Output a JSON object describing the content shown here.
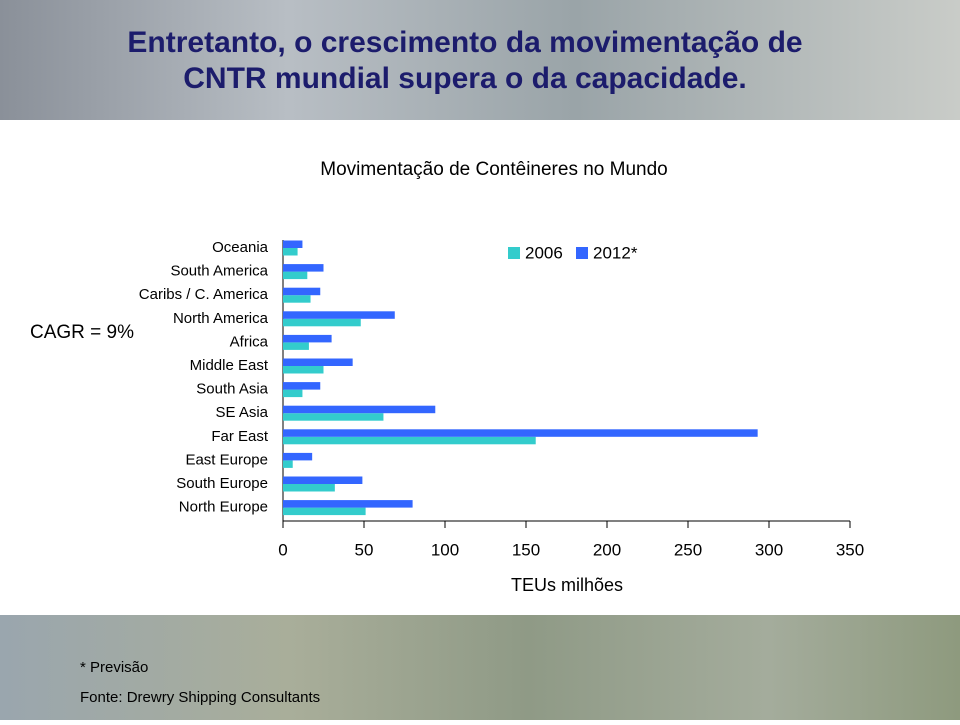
{
  "slide_title": [
    "Entretanto, o crescimento da movimentação de",
    "CNTR mundial supera o da capacidade."
  ],
  "footnotes": [
    "* Previsão",
    "Fonte: Drewry Shipping Consultants"
  ],
  "chart_data": {
    "type": "hbar",
    "title": "Movimentação de Contêineres no Mundo",
    "annotation": "CAGR = 9%",
    "x_label": "TEUs milhões",
    "categories": [
      "Oceania",
      "South America",
      "Caribs / C. America",
      "North America",
      "Africa",
      "Middle East",
      "South Asia",
      "SE Asia",
      "Far East",
      "East Europe",
      "South Europe",
      "North Europe"
    ],
    "series": [
      {
        "name": "2006",
        "color": "#33cccc",
        "values": [
          9,
          15,
          17,
          48,
          16,
          25,
          12,
          62,
          156,
          6,
          32,
          51
        ]
      },
      {
        "name": "2012*",
        "color": "#3366ff",
        "values": [
          12,
          25,
          23,
          69,
          30,
          43,
          23,
          94,
          293,
          18,
          49,
          80
        ]
      }
    ],
    "xlim": [
      0,
      350
    ],
    "xticks": [
      0,
      50,
      100,
      150,
      200,
      250,
      300,
      350
    ],
    "legend": "top-right"
  }
}
